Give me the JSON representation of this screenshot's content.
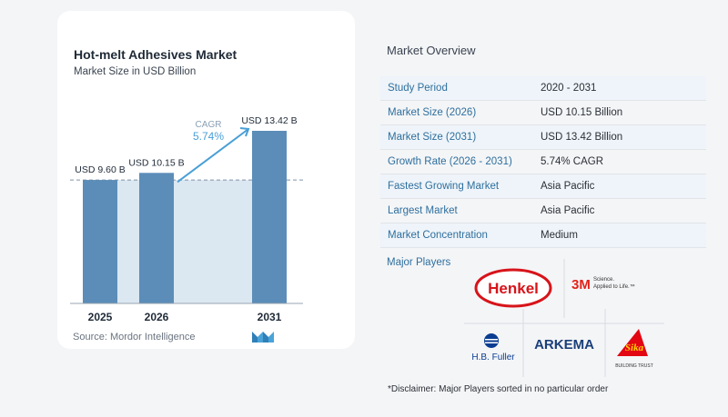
{
  "chart_data": {
    "type": "bar",
    "title": "Hot-melt Adhesives Market",
    "subtitle": "Market Size in USD Billion",
    "categories": [
      "2025",
      "2026",
      "2031"
    ],
    "values": [
      9.6,
      10.15,
      13.42
    ],
    "value_labels": [
      "USD 9.60 B",
      "USD 10.15 B",
      "USD 13.42 B"
    ],
    "cagr_label": "CAGR",
    "cagr_value": "5.74%",
    "bar_color": "#5b8db8",
    "shade_color": "#dbe7f1",
    "accent_color": "#4a9fd6",
    "ylim": [
      0,
      14.5
    ],
    "grid": false,
    "reference_line": "dashed at first bar value"
  },
  "source": "Source:  Mordor Intelligence",
  "logo_icon": "mordor-intelligence-logo-icon",
  "overview": {
    "title": "Market Overview",
    "rows": [
      {
        "label": "Study Period",
        "value": "2020 - 2031"
      },
      {
        "label": "Market Size (2026)",
        "value": "USD 10.15 Billion"
      },
      {
        "label": "Market Size (2031)",
        "value": "USD 13.42 Billion"
      },
      {
        "label": "Growth Rate (2026 - 2031)",
        "value": "5.74% CAGR"
      },
      {
        "label": "Fastest Growing Market",
        "value": "Asia Pacific"
      },
      {
        "label": "Largest Market",
        "value": "Asia Pacific"
      },
      {
        "label": "Market Concentration",
        "value": "Medium"
      }
    ],
    "row_band_color": "#eef4f9"
  },
  "players": {
    "label": "Major Players",
    "logos": [
      {
        "name": "Henkel",
        "text": "Henkel",
        "color": "#d7141a"
      },
      {
        "name": "3M",
        "text": "3M",
        "tagline": "Science. Applied to Life.™",
        "color": "#e2231a"
      },
      {
        "name": "H.B. Fuller",
        "text": "H.B. Fuller",
        "color": "#0a3d91"
      },
      {
        "name": "Arkema",
        "text": "ARKEMA",
        "color": "#1a3f7a"
      },
      {
        "name": "Sika",
        "text": "Sika",
        "tagline": "BUILDING TRUST",
        "color": "#e30613"
      }
    ]
  },
  "disclaimer": "*Disclaimer: Major Players sorted in no particular order"
}
